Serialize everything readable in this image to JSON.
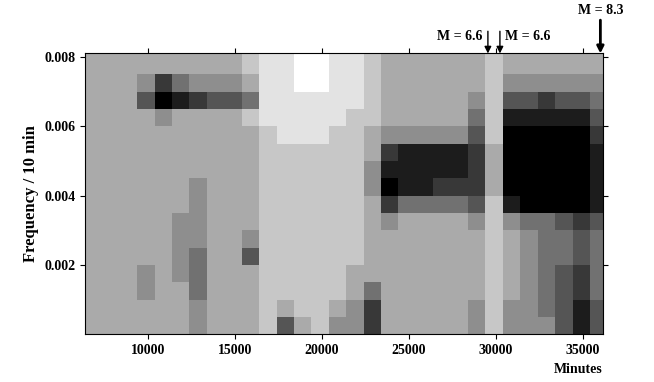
{
  "chart_data": {
    "type": "heatmap",
    "xlabel": "Minutes",
    "ylabel": "Frequency / 10 min",
    "xlim": [
      6400,
      36150
    ],
    "ylim": [
      0,
      0.0081
    ],
    "xticks": [
      10000,
      15000,
      20000,
      25000,
      30000,
      35000
    ],
    "yticks": [
      0.002,
      0.004,
      0.006,
      0.008
    ],
    "value_range": [
      0,
      9
    ],
    "x_edges": [
      6400,
      7400,
      8400,
      9400,
      10400,
      11400,
      12400,
      13400,
      14400,
      15400,
      16400,
      17400,
      18400,
      19400,
      20400,
      21400,
      22400,
      23400,
      24400,
      25400,
      26400,
      27400,
      28400,
      29400,
      30400,
      31400,
      32400,
      33400,
      34400,
      35400,
      36400
    ],
    "y_edges": [
      0,
      0.0005,
      0.001,
      0.0015,
      0.002,
      0.0025,
      0.003,
      0.0035,
      0.004,
      0.0045,
      0.005,
      0.0055,
      0.006,
      0.0065,
      0.007,
      0.0075,
      0.008,
      0.0085
    ],
    "cells": [
      [
        3,
        3,
        3,
        3,
        3,
        3,
        4,
        3,
        3,
        3,
        2,
        6,
        3,
        2,
        4,
        4,
        7,
        3,
        3,
        3,
        3,
        3,
        4,
        2,
        4,
        4,
        4,
        6,
        8,
        6
      ],
      [
        3,
        3,
        3,
        3,
        3,
        3,
        4,
        3,
        3,
        3,
        2,
        3,
        2,
        2,
        3,
        4,
        7,
        3,
        3,
        3,
        3,
        3,
        4,
        2,
        4,
        4,
        5,
        6,
        8,
        6
      ],
      [
        3,
        3,
        3,
        4,
        3,
        3,
        5,
        3,
        3,
        3,
        2,
        2,
        2,
        2,
        2,
        3,
        5,
        3,
        3,
        3,
        3,
        3,
        3,
        2,
        3,
        4,
        5,
        6,
        7,
        5
      ],
      [
        3,
        3,
        3,
        4,
        3,
        4,
        5,
        3,
        3,
        3,
        2,
        2,
        2,
        2,
        2,
        3,
        3,
        3,
        3,
        3,
        3,
        3,
        3,
        2,
        3,
        4,
        5,
        6,
        7,
        5
      ],
      [
        3,
        3,
        3,
        3,
        3,
        4,
        5,
        3,
        3,
        6,
        2,
        2,
        2,
        2,
        2,
        2,
        3,
        3,
        3,
        3,
        3,
        3,
        3,
        2,
        3,
        4,
        5,
        5,
        6,
        5
      ],
      [
        3,
        3,
        3,
        3,
        3,
        4,
        4,
        3,
        3,
        4,
        2,
        2,
        2,
        2,
        2,
        2,
        3,
        3,
        3,
        3,
        3,
        3,
        3,
        2,
        3,
        4,
        5,
        5,
        6,
        5
      ],
      [
        3,
        3,
        3,
        3,
        3,
        4,
        4,
        3,
        3,
        3,
        2,
        2,
        2,
        2,
        2,
        2,
        3,
        4,
        3,
        3,
        3,
        3,
        4,
        2,
        4,
        5,
        5,
        6,
        7,
        6
      ],
      [
        3,
        3,
        3,
        3,
        3,
        3,
        4,
        3,
        3,
        3,
        2,
        2,
        2,
        2,
        2,
        2,
        3,
        7,
        5,
        5,
        5,
        5,
        6,
        2,
        8,
        9,
        9,
        9,
        9,
        8
      ],
      [
        3,
        3,
        3,
        3,
        3,
        3,
        4,
        3,
        3,
        3,
        2,
        2,
        2,
        2,
        2,
        2,
        4,
        9,
        8,
        8,
        7,
        7,
        7,
        3,
        9,
        9,
        9,
        9,
        9,
        8
      ],
      [
        3,
        3,
        3,
        3,
        3,
        3,
        3,
        3,
        3,
        3,
        2,
        2,
        2,
        2,
        2,
        2,
        4,
        8,
        8,
        8,
        8,
        8,
        7,
        3,
        9,
        9,
        9,
        9,
        9,
        8
      ],
      [
        3,
        3,
        3,
        3,
        3,
        3,
        3,
        3,
        3,
        3,
        2,
        2,
        2,
        2,
        2,
        2,
        3,
        7,
        8,
        8,
        8,
        8,
        7,
        3,
        9,
        9,
        9,
        9,
        9,
        8
      ],
      [
        3,
        3,
        3,
        3,
        3,
        3,
        3,
        3,
        3,
        3,
        2,
        1,
        1,
        1,
        2,
        2,
        3,
        4,
        4,
        4,
        4,
        4,
        6,
        2,
        9,
        9,
        9,
        9,
        9,
        7
      ],
      [
        3,
        3,
        3,
        3,
        4,
        3,
        3,
        3,
        3,
        2,
        1,
        1,
        1,
        1,
        1,
        2,
        2,
        3,
        3,
        3,
        3,
        3,
        5,
        2,
        8,
        8,
        8,
        8,
        8,
        6
      ],
      [
        3,
        3,
        3,
        6,
        9,
        8,
        7,
        6,
        6,
        5,
        1,
        1,
        1,
        1,
        1,
        1,
        2,
        3,
        3,
        3,
        3,
        3,
        4,
        2,
        6,
        6,
        7,
        6,
        6,
        5
      ],
      [
        3,
        3,
        3,
        4,
        7,
        5,
        4,
        4,
        4,
        3,
        1,
        1,
        0,
        0,
        1,
        1,
        2,
        3,
        3,
        3,
        3,
        3,
        3,
        2,
        4,
        4,
        4,
        4,
        4,
        4
      ],
      [
        3,
        3,
        3,
        3,
        3,
        3,
        3,
        3,
        3,
        2,
        1,
        1,
        0,
        0,
        1,
        1,
        2,
        3,
        3,
        3,
        3,
        3,
        3,
        2,
        3,
        3,
        3,
        3,
        3,
        3
      ],
      [
        3,
        3,
        3,
        3,
        3,
        3,
        3,
        3,
        3,
        2,
        1,
        1,
        0,
        0,
        1,
        1,
        2,
        3,
        3,
        3,
        3,
        3,
        3,
        2,
        3,
        3,
        3,
        3,
        3,
        3
      ]
    ],
    "annotations": [
      {
        "text": "M = 6.6",
        "x": 29540
      },
      {
        "text": "M = 6.6",
        "x": 30230
      },
      {
        "text": "M = 8.3",
        "x": 36000
      }
    ]
  }
}
